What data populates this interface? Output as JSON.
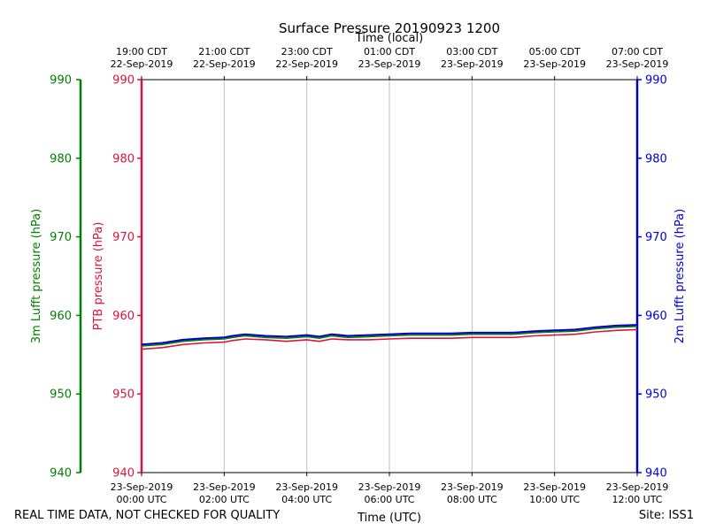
{
  "footer": {
    "quality_note": "REAL TIME DATA, NOT CHECKED FOR QUALITY",
    "site": "Site: ISS1"
  },
  "colors": {
    "ptb": "#dc143c",
    "lufft3m": "#008000",
    "lufft2m": "#0000cd",
    "grid": "#b0b0b0",
    "frame": "#000000"
  },
  "chart_data": {
    "type": "line",
    "title": "Surface Pressure 20190923 1200",
    "xlabel_bottom": "Time (UTC)",
    "xlabel_top": "Time (local)",
    "x_range_hours": [
      0,
      12
    ],
    "grid": true,
    "x_ticks_bottom": [
      {
        "hour": 0,
        "line1": "23-Sep-2019",
        "line2": "00:00 UTC"
      },
      {
        "hour": 2,
        "line1": "23-Sep-2019",
        "line2": "02:00 UTC"
      },
      {
        "hour": 4,
        "line1": "23-Sep-2019",
        "line2": "04:00 UTC"
      },
      {
        "hour": 6,
        "line1": "23-Sep-2019",
        "line2": "06:00 UTC"
      },
      {
        "hour": 8,
        "line1": "23-Sep-2019",
        "line2": "08:00 UTC"
      },
      {
        "hour": 10,
        "line1": "23-Sep-2019",
        "line2": "10:00 UTC"
      },
      {
        "hour": 12,
        "line1": "23-Sep-2019",
        "line2": "12:00 UTC"
      }
    ],
    "x_ticks_top": [
      {
        "hour": 0,
        "line1": "19:00 CDT",
        "line2": "22-Sep-2019"
      },
      {
        "hour": 2,
        "line1": "21:00 CDT",
        "line2": "22-Sep-2019"
      },
      {
        "hour": 4,
        "line1": "23:00 CDT",
        "line2": "22-Sep-2019"
      },
      {
        "hour": 6,
        "line1": "01:00 CDT",
        "line2": "23-Sep-2019"
      },
      {
        "hour": 8,
        "line1": "03:00 CDT",
        "line2": "23-Sep-2019"
      },
      {
        "hour": 10,
        "line1": "05:00 CDT",
        "line2": "23-Sep-2019"
      },
      {
        "hour": 12,
        "line1": "07:00 CDT",
        "line2": "23-Sep-2019"
      }
    ],
    "y_axes": [
      {
        "id": "lufft3m",
        "label": "3m Lufft pressure (hPa)",
        "ylim": [
          940,
          990
        ],
        "ticks": [
          940,
          950,
          960,
          970,
          980,
          990
        ]
      },
      {
        "id": "ptb",
        "label": "PTB pressure (hPa)",
        "ylim": [
          940,
          990
        ],
        "ticks": [
          940,
          950,
          960,
          970,
          980,
          990
        ]
      },
      {
        "id": "lufft2m",
        "label": "2m Lufft pressure (hPa)",
        "ylim": [
          940,
          990
        ],
        "ticks": [
          940,
          950,
          960,
          970,
          980,
          990
        ]
      }
    ],
    "series": [
      {
        "id": "ptb",
        "x": [
          0,
          0.5,
          1,
          1.5,
          2,
          2.2,
          2.5,
          3,
          3.5,
          4,
          4.3,
          4.6,
          5,
          5.5,
          6,
          6.5,
          7,
          7.5,
          8,
          8.5,
          9,
          9.5,
          10,
          10.5,
          11,
          11.5,
          12
        ],
        "values": [
          955.7,
          955.9,
          956.3,
          956.5,
          956.6,
          956.8,
          957.0,
          956.9,
          956.7,
          956.9,
          956.7,
          957.0,
          956.9,
          956.9,
          957.0,
          957.1,
          957.1,
          957.1,
          957.2,
          957.2,
          957.2,
          957.4,
          957.5,
          957.6,
          957.9,
          958.1,
          958.2
        ]
      },
      {
        "id": "lufft3m",
        "x": [
          0,
          0.5,
          1,
          1.5,
          2,
          2.2,
          2.5,
          3,
          3.5,
          4,
          4.3,
          4.6,
          5,
          5.5,
          6,
          6.5,
          7,
          7.5,
          8,
          8.5,
          9,
          9.5,
          10,
          10.5,
          11,
          11.5,
          12
        ],
        "values": [
          956.1,
          956.3,
          956.7,
          956.9,
          957.0,
          957.2,
          957.4,
          957.2,
          957.1,
          957.3,
          957.1,
          957.4,
          957.2,
          957.3,
          957.4,
          957.5,
          957.5,
          957.5,
          957.6,
          957.6,
          957.6,
          957.8,
          957.9,
          958.0,
          958.3,
          958.5,
          958.6
        ]
      },
      {
        "id": "lufft2m",
        "x": [
          0,
          0.5,
          1,
          1.5,
          2,
          2.2,
          2.5,
          3,
          3.5,
          4,
          4.3,
          4.6,
          5,
          5.5,
          6,
          6.5,
          7,
          7.5,
          8,
          8.5,
          9,
          9.5,
          10,
          10.5,
          11,
          11.5,
          12
        ],
        "values": [
          956.3,
          956.5,
          956.9,
          957.1,
          957.2,
          957.4,
          957.6,
          957.4,
          957.3,
          957.5,
          957.3,
          957.6,
          957.4,
          957.5,
          957.6,
          957.7,
          957.7,
          957.7,
          957.8,
          957.8,
          957.8,
          958.0,
          958.1,
          958.2,
          958.5,
          958.7,
          958.8
        ]
      }
    ]
  }
}
